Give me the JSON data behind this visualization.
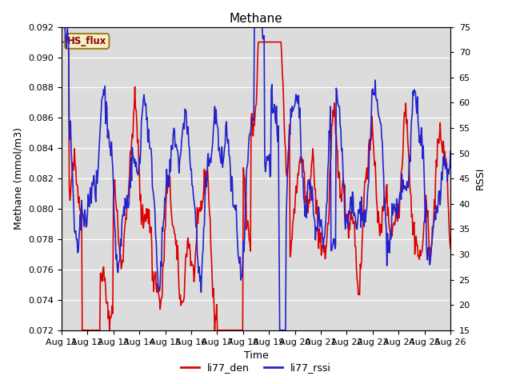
{
  "title": "Methane",
  "xlabel": "Time",
  "ylabel_left": "Methane (mmol/m3)",
  "ylabel_right": "RSSI",
  "ylim_left": [
    0.072,
    0.092
  ],
  "ylim_right": [
    15,
    75
  ],
  "xlim": [
    0,
    15
  ],
  "x_tick_labels": [
    "Aug 11",
    "Aug 12",
    "Aug 13",
    "Aug 14",
    "Aug 15",
    "Aug 16",
    "Aug 17",
    "Aug 18",
    "Aug 19",
    "Aug 20",
    "Aug 21",
    "Aug 22",
    "Aug 23",
    "Aug 24",
    "Aug 25",
    "Aug 26"
  ],
  "color_red": "#dd0000",
  "color_blue": "#2222cc",
  "legend_labels": [
    "li77_den",
    "li77_rssi"
  ],
  "hs_flux_label": "HS_flux",
  "bg_color_inner": "#dcdcdc",
  "bg_color_outer": "#f0f0f0",
  "title_fontsize": 11,
  "axis_fontsize": 9,
  "tick_fontsize": 8,
  "legend_fontsize": 9,
  "linewidth": 1.2,
  "seed": 42
}
